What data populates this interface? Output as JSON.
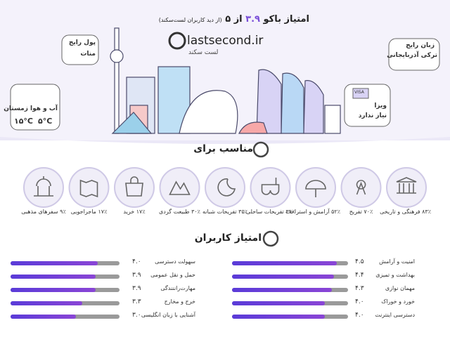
{
  "header": {
    "title_start": "امتیاز باکو",
    "score": {
      "value": 3.9,
      "label": "۳.۹"
    },
    "title_of": "از",
    "max": {
      "value": 5,
      "label": "۵"
    },
    "subtitle": "(از دید کاربران لست‌سکند)"
  },
  "logo": {
    "latin": "lastsecond.ir",
    "persian": "لست سکند"
  },
  "facts": {
    "currency": {
      "title": "پول رایج",
      "value": "منات"
    },
    "weather": {
      "title": "آب و هوا زمستان",
      "high": "۱۵°C",
      "low": "۵°C"
    },
    "language": {
      "title": "زبان رایج",
      "value": "ترکی آذربایجانی"
    },
    "visa": {
      "title": "ویزا",
      "value": "نیاز ندارد",
      "badge": "VISA"
    }
  },
  "suitable": {
    "title": "مناسب برای",
    "items": [
      "۸۳٪ فرهنگی و تاریخی",
      "۷۰٪ تفریح",
      "۵۲٪ آرامش و استراحت",
      "۳۹٪ تفریحات ساحلی",
      "۳۵٪ تفریحات شبانه",
      "۳۰٪ طبیعت گردی",
      "۱۷٪ خرید",
      "۱۷٪ ماجراجویی",
      "۹٪ سفرهای مذهبی"
    ]
  },
  "ratings": {
    "title": "امتیاز کاربران",
    "right": [
      {
        "label": "امنیت و آرامش",
        "score": {
          "value": 4.5,
          "label": "۴.۵"
        }
      },
      {
        "label": "بهداشت و تمیزی",
        "score": {
          "value": 4.4,
          "label": "۴.۴"
        }
      },
      {
        "label": "مهمان نوازی",
        "score": {
          "value": 4.3,
          "label": "۴.۳"
        }
      },
      {
        "label": "خورد و خوراک",
        "score": {
          "value": 4.0,
          "label": "۴.۰"
        }
      },
      {
        "label": "دسترسی اینترنت",
        "score": {
          "value": 4.0,
          "label": "۴.۰"
        }
      }
    ],
    "left": [
      {
        "label": "سهولت دسترسی",
        "score": {
          "value": 4.0,
          "label": "۴.۰"
        }
      },
      {
        "label": "حمل و نقل عمومی",
        "score": {
          "value": 3.9,
          "label": "۳.۹"
        }
      },
      {
        "label": "مهارت‌راننندگی",
        "score": {
          "value": 3.9,
          "label": "۳.۹"
        }
      },
      {
        "label": "خرج و مخارج",
        "score": {
          "value": 3.3,
          "label": "۳.۳"
        }
      },
      {
        "label": "آشنایی با زبان انگلیسی",
        "score": {
          "value": 3.0,
          "label": "۳.۰"
        }
      }
    ]
  }
}
